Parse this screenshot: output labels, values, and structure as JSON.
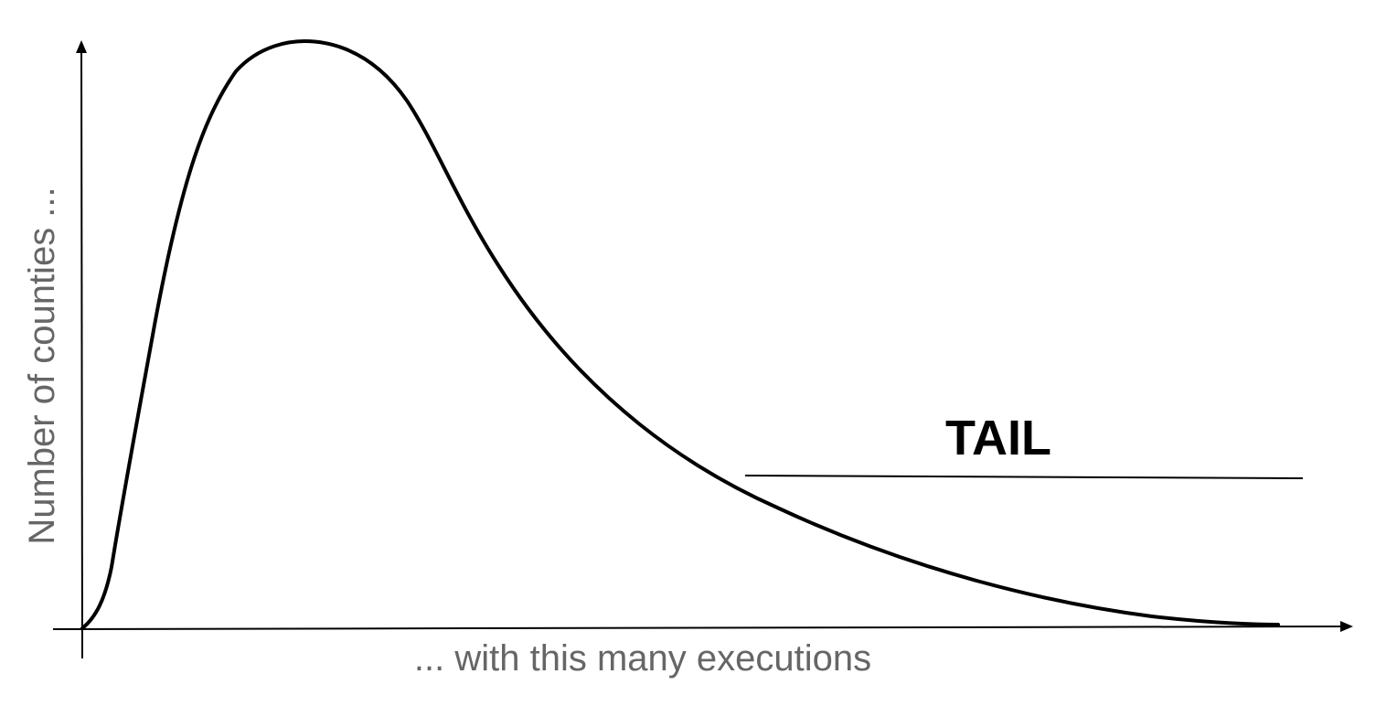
{
  "diagram": {
    "y_axis_label": "Number of counties ...",
    "x_axis_label": "... with this many executions",
    "annotation": "TAIL",
    "curve_shape": "right-skewed distribution with long tail",
    "colors": {
      "curve": "#000000",
      "axes": "#000000",
      "axis_label": "#666666",
      "annotation": "#000000"
    }
  }
}
